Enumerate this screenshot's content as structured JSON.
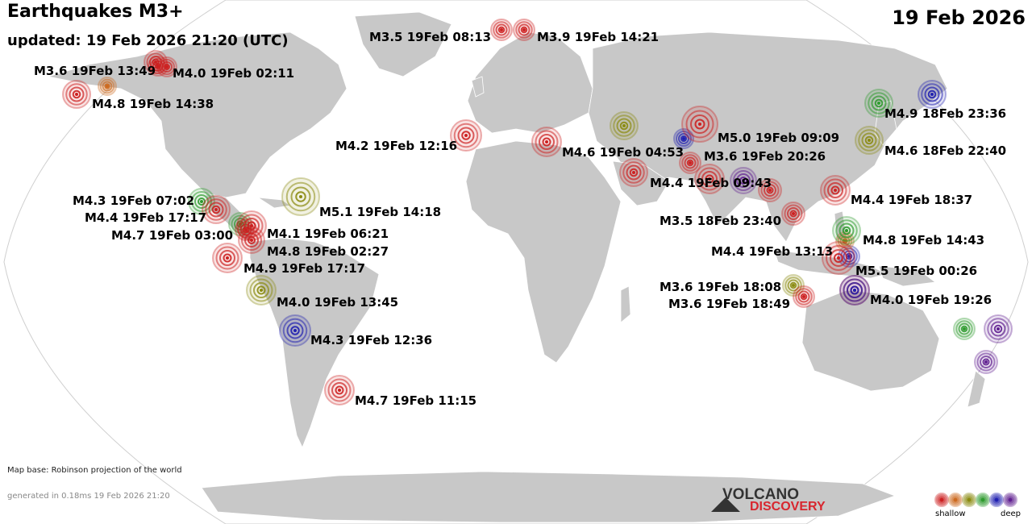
{
  "header": {
    "title": "Earthquakes M3+",
    "updated": "updated: 19 Feb 2026 21:20 (UTC)",
    "date": "19 Feb 2026"
  },
  "footer": {
    "map_base": "Map base: Robinson projection of the world",
    "generated": "generated in 0.18ms 19 Feb 2026 21:20"
  },
  "logo": {
    "line1": "VOLCANO",
    "line2": "DISCOVERY"
  },
  "legend": {
    "shallow": "shallow",
    "deep": "deep",
    "colors": [
      "#cc2020",
      "#cc6a20",
      "#8a8a10",
      "#2e9a2e",
      "#2020b0",
      "#602090"
    ]
  },
  "colors": {
    "land": "#c8c8c8",
    "ocean": "#ffffff",
    "borders": "#ffffff",
    "shallow": "#cc2020",
    "shallow_mid": "#cc6a20",
    "intermediate": "#8a8a10",
    "mid_deep": "#2e9a2e",
    "deep": "#2020b0",
    "very_deep": "#602090"
  },
  "earthquakes": [
    {
      "label": "M3.5 19Feb 08:13",
      "depth": "shallow"
    },
    {
      "label": "M3.9 19Feb 14:21",
      "depth": "shallow"
    },
    {
      "label": "M3.6 19Feb 13:49",
      "depth": "shallow"
    },
    {
      "label": "M4.0 19Feb 02:11",
      "depth": "shallow"
    },
    {
      "label": "M4.8 19Feb 14:38",
      "depth": "shallow"
    },
    {
      "label": "M4.9 18Feb 23:36",
      "depth": "mid_deep"
    },
    {
      "label": "M4.2 19Feb 12:16",
      "depth": "shallow"
    },
    {
      "label": "M4.6 19Feb 04:53",
      "depth": "shallow"
    },
    {
      "label": "M5.0 19Feb 09:09",
      "depth": "shallow"
    },
    {
      "label": "M3.6 19Feb 20:26",
      "depth": "shallow"
    },
    {
      "label": "M4.6 18Feb 22:40",
      "depth": "intermediate"
    },
    {
      "label": "M4.4 19Feb 09:43",
      "depth": "shallow"
    },
    {
      "label": "M4.3 19Feb 07:02",
      "depth": "mid_deep"
    },
    {
      "label": "M4.4 19Feb 17:17",
      "depth": "shallow"
    },
    {
      "label": "M4.7 19Feb 03:00",
      "depth": "shallow"
    },
    {
      "label": "M5.1 19Feb 14:18",
      "depth": "intermediate"
    },
    {
      "label": "M4.4 19Feb 18:37",
      "depth": "shallow"
    },
    {
      "label": "M4.1 19Feb 06:21",
      "depth": "shallow"
    },
    {
      "label": "M4.8 19Feb 02:27",
      "depth": "shallow"
    },
    {
      "label": "M4.9 19Feb 17:17",
      "depth": "shallow"
    },
    {
      "label": "M3.5 18Feb 23:40",
      "depth": "shallow"
    },
    {
      "label": "M4.8 19Feb 14:43",
      "depth": "mid_deep"
    },
    {
      "label": "M4.4 19Feb 13:13",
      "depth": "shallow"
    },
    {
      "label": "M5.5 19Feb 00:26",
      "depth": "shallow"
    },
    {
      "label": "M3.6 19Feb 18:08",
      "depth": "intermediate"
    },
    {
      "label": "M3.6 19Feb 18:49",
      "depth": "shallow"
    },
    {
      "label": "M4.0 19Feb 19:26",
      "depth": "deep"
    },
    {
      "label": "M4.0 19Feb 13:45",
      "depth": "intermediate"
    },
    {
      "label": "M4.3 19Feb 12:36",
      "depth": "deep"
    },
    {
      "label": "M4.7 19Feb 11:15",
      "depth": "shallow"
    }
  ]
}
